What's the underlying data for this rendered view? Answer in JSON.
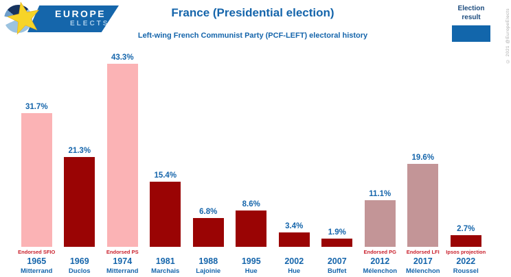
{
  "logo": {
    "line1": "EUROPE",
    "line2": "ELECTS"
  },
  "header": {
    "title": "France (Presidential election)",
    "subtitle": "Left-wing French Communist Party (PCF-LEFT) electoral history"
  },
  "legend": {
    "label": "Election result"
  },
  "copyright": "© 2021 @EuropeElects",
  "colors": {
    "pink": "#fbb3b5",
    "dark_red": "#9a0404",
    "mauve": "#c39597",
    "blue_text": "#1565ab",
    "note_red": "#c9202c",
    "legend_blue": "#1266ab",
    "banner_blue": "#1566ab"
  },
  "chart_data": {
    "type": "bar",
    "title": "France (Presidential election)",
    "subtitle": "Left-wing French Communist Party (PCF-LEFT) electoral history",
    "unit": "%",
    "ylim": [
      0,
      45
    ],
    "grid": false,
    "legend": {
      "label": "Election result",
      "position": "top-right"
    },
    "categories": [
      "1965",
      "1969",
      "1974",
      "1981",
      "1988",
      "1995",
      "2002",
      "2007",
      "2012",
      "2017",
      "2022"
    ],
    "values": [
      31.7,
      21.3,
      43.3,
      15.4,
      6.8,
      8.6,
      3.4,
      1.9,
      11.1,
      19.6,
      2.7
    ],
    "bars": [
      {
        "year": "1965",
        "candidate": "Mitterrand",
        "value": 31.7,
        "value_label": "31.7%",
        "note": "Endorsed SFIO",
        "color_key": "pink"
      },
      {
        "year": "1969",
        "candidate": "Duclos",
        "value": 21.3,
        "value_label": "21.3%",
        "note": "",
        "color_key": "dark_red"
      },
      {
        "year": "1974",
        "candidate": "Mitterrand",
        "value": 43.3,
        "value_label": "43.3%",
        "note": "Endorsed PS",
        "color_key": "pink"
      },
      {
        "year": "1981",
        "candidate": "Marchais",
        "value": 15.4,
        "value_label": "15.4%",
        "note": "",
        "color_key": "dark_red"
      },
      {
        "year": "1988",
        "candidate": "Lajoinie",
        "value": 6.8,
        "value_label": "6.8%",
        "note": "",
        "color_key": "dark_red"
      },
      {
        "year": "1995",
        "candidate": "Hue",
        "value": 8.6,
        "value_label": "8.6%",
        "note": "",
        "color_key": "dark_red"
      },
      {
        "year": "2002",
        "candidate": "Hue",
        "value": 3.4,
        "value_label": "3.4%",
        "note": "",
        "color_key": "dark_red"
      },
      {
        "year": "2007",
        "candidate": "Buffet",
        "value": 1.9,
        "value_label": "1.9%",
        "note": "",
        "color_key": "dark_red"
      },
      {
        "year": "2012",
        "candidate": "Mélenchon",
        "value": 11.1,
        "value_label": "11.1%",
        "note": "Endorsed PG",
        "color_key": "mauve"
      },
      {
        "year": "2017",
        "candidate": "Mélenchon",
        "value": 19.6,
        "value_label": "19.6%",
        "note": "Endorsed LFI",
        "color_key": "mauve"
      },
      {
        "year": "2022",
        "candidate": "Roussel",
        "value": 2.7,
        "value_label": "2.7%",
        "note": "Ipsos projection",
        "color_key": "dark_red"
      }
    ]
  }
}
